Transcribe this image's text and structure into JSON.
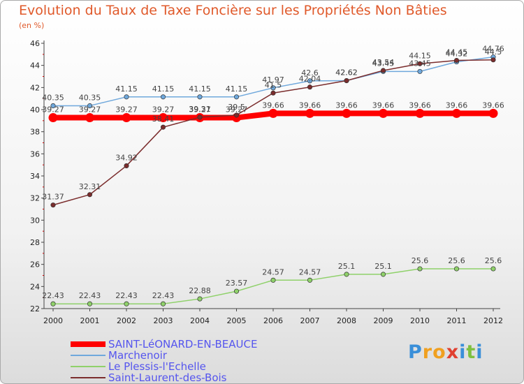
{
  "chart_data": {
    "type": "line",
    "title": "Evolution du Taux de Taxe Foncière sur les Propriétés Non Bâties",
    "ylabel": "(en %)",
    "xlabel": "",
    "ylim": [
      22,
      46
    ],
    "yticks": [
      22,
      24,
      26,
      28,
      30,
      32,
      34,
      36,
      38,
      40,
      42,
      44,
      46
    ],
    "grid": false,
    "legend_placement": "bottom-left",
    "categories": [
      "2000",
      "2001",
      "2002",
      "2003",
      "2004",
      "2005",
      "2006",
      "2007",
      "2008",
      "2009",
      "2010",
      "2011",
      "2012"
    ],
    "series": [
      {
        "name": "SAINT-LéONARD-EN-BEAUCE",
        "color": "#ff0000",
        "values": [
          39.27,
          39.27,
          39.27,
          39.27,
          39.27,
          39.27,
          39.66,
          39.66,
          39.66,
          39.66,
          39.66,
          39.66,
          39.66
        ],
        "labels": [
          "39.27",
          "39.27",
          "39.27",
          "39.27",
          "39.27",
          "39.27",
          "39.66",
          "39.66",
          "39.66",
          "39.66",
          "39.66",
          "39.66",
          "39.66"
        ]
      },
      {
        "name": "Marchenoir",
        "color": "#6fa8dc",
        "values": [
          40.35,
          40.35,
          41.15,
          41.15,
          41.15,
          41.15,
          41.97,
          42.6,
          42.62,
          43.45,
          43.45,
          44.32,
          44.76
        ],
        "labels": [
          "40.35",
          "40.35",
          "41.15",
          "41.15",
          "41.15",
          "41.15",
          "41.97",
          "42.6",
          "42.62",
          "43.45",
          "43.45",
          "44.32",
          "44.76"
        ]
      },
      {
        "name": "Le Plessis-l'Echelle",
        "color": "#8fd16a",
        "values": [
          22.43,
          22.43,
          22.43,
          22.43,
          22.88,
          23.57,
          24.57,
          24.57,
          25.1,
          25.1,
          25.6,
          25.6,
          25.6
        ],
        "labels": [
          "22.43",
          "22.43",
          "22.43",
          "22.43",
          "22.88",
          "23.57",
          "24.57",
          "24.57",
          "25.1",
          "25.1",
          "25.6",
          "25.6",
          "25.6"
        ]
      },
      {
        "name": "Saint-Laurent-des-Bois",
        "color": "#7b2d2d",
        "values": [
          31.37,
          32.31,
          34.92,
          38.41,
          39.31,
          39.5,
          41.5,
          42.04,
          42.62,
          43.54,
          44.15,
          44.45,
          44.5
        ],
        "labels": [
          "31.37",
          "32.31",
          "34.92",
          "38.41",
          "39.31",
          "39.5",
          "41.5",
          "42.04",
          "42.62",
          "43.54",
          "44.15",
          "44.45",
          "44.5"
        ]
      }
    ]
  },
  "logo": {
    "letters": [
      "P",
      "r",
      "o",
      "x",
      "i",
      "t",
      "i"
    ],
    "colors": [
      "#3a8fd9",
      "#f0a020",
      "#f0a020",
      "#e04030",
      "#3a8fd9",
      "#7ec040",
      "#3a8fd9"
    ]
  }
}
